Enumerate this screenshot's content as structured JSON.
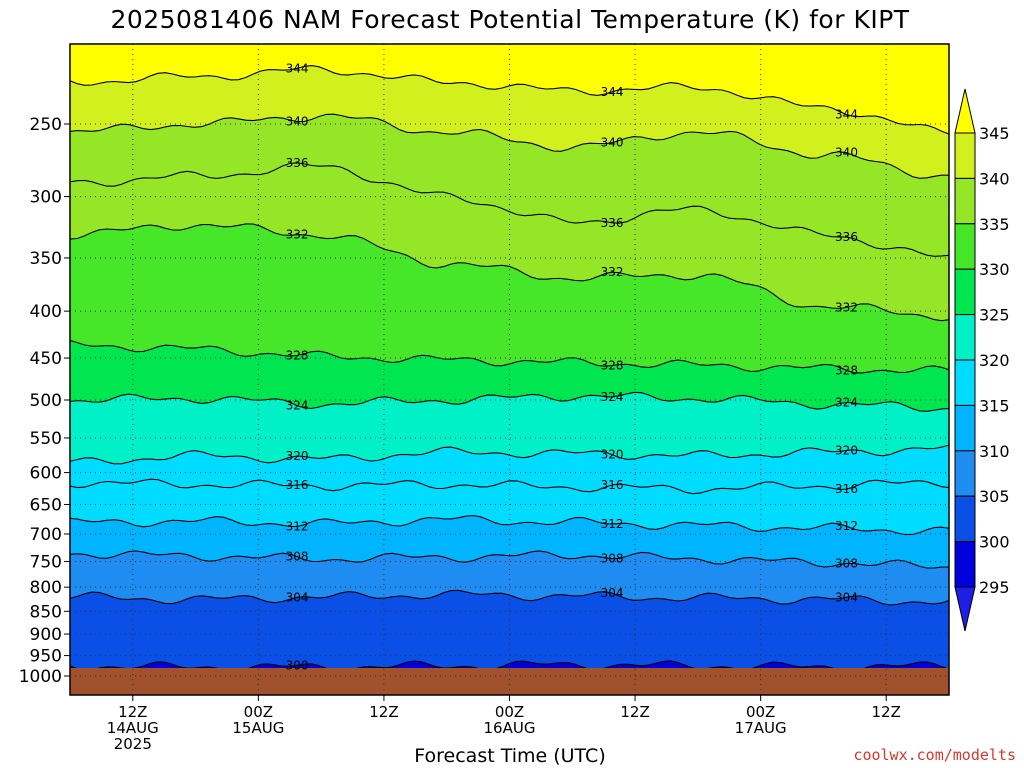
{
  "chart_data": {
    "type": "heatmap",
    "title": "2025081406 NAM Forecast Potential Temperature (K) for KIPT",
    "xlabel": "Forecast Time (UTC)",
    "ylabel": "",
    "credit": "coolwx.com/modelts",
    "y_axis": {
      "scale": "log-pressure",
      "inverted": true,
      "units": "hPa",
      "ticks": [
        250,
        300,
        350,
        400,
        450,
        500,
        550,
        600,
        650,
        700,
        750,
        800,
        850,
        900,
        950,
        1000
      ],
      "range": [
        1000,
        200
      ]
    },
    "x_axis": {
      "range_hours": [
        0,
        84
      ],
      "ticks": [
        {
          "hour": 6,
          "lines": [
            "12Z",
            "14AUG",
            "2025"
          ]
        },
        {
          "hour": 18,
          "lines": [
            "00Z",
            "15AUG"
          ]
        },
        {
          "hour": 30,
          "lines": [
            "12Z"
          ]
        },
        {
          "hour": 42,
          "lines": [
            "00Z",
            "16AUG"
          ]
        },
        {
          "hour": 54,
          "lines": [
            "12Z"
          ]
        },
        {
          "hour": 66,
          "lines": [
            "00Z",
            "17AUG"
          ]
        },
        {
          "hour": 78,
          "lines": [
            "12Z"
          ]
        }
      ]
    },
    "colorbar": {
      "levels": [
        295,
        300,
        305,
        310,
        315,
        320,
        325,
        330,
        335,
        340,
        345
      ],
      "colors": [
        "#1e1ee6",
        "#0000dc",
        "#0a50e6",
        "#1e8cf0",
        "#00b4ff",
        "#00dcff",
        "#00f0c8",
        "#00e650",
        "#46e628",
        "#96e628",
        "#d2f01e",
        "#ffff00"
      ],
      "labels": [
        "295",
        "300",
        "305",
        "310",
        "315",
        "320",
        "325",
        "330",
        "335",
        "340",
        "345"
      ]
    },
    "ground_color": "#a0522d",
    "contour_interval_K": 4,
    "contours": [
      {
        "level": 300,
        "label": "300",
        "pressure_profile": [
          975,
          978,
          978,
          975,
          972,
          975,
          978,
          975
        ]
      },
      {
        "level": 304,
        "label": "304",
        "pressure_profile": [
          820,
          825,
          820,
          815,
          818,
          822,
          825,
          830
        ]
      },
      {
        "level": 308,
        "label": "308",
        "pressure_profile": [
          735,
          740,
          745,
          742,
          738,
          745,
          752,
          760
        ]
      },
      {
        "level": 312,
        "label": "312",
        "pressure_profile": [
          680,
          678,
          682,
          675,
          680,
          685,
          690,
          695
        ]
      },
      {
        "level": 316,
        "label": "316",
        "pressure_profile": [
          615,
          618,
          620,
          618,
          622,
          625,
          620,
          615
        ]
      },
      {
        "level": 320,
        "label": "320",
        "pressure_profile": [
          585,
          575,
          580,
          570,
          572,
          575,
          570,
          565
        ]
      },
      {
        "level": 324,
        "label": "324",
        "pressure_profile": [
          500,
          498,
          505,
          500,
          495,
          498,
          505,
          510
        ]
      },
      {
        "level": 328,
        "label": "328",
        "pressure_profile": [
          435,
          440,
          448,
          452,
          455,
          458,
          462,
          465
        ]
      },
      {
        "level": 332,
        "label": "332",
        "pressure_profile": [
          330,
          322,
          330,
          355,
          368,
          365,
          395,
          405
        ]
      },
      {
        "level": 336,
        "label": "336",
        "pressure_profile": [
          290,
          285,
          278,
          300,
          320,
          310,
          330,
          350
        ]
      },
      {
        "level": 340,
        "label": "340",
        "pressure_profile": [
          255,
          250,
          245,
          255,
          265,
          255,
          270,
          285
        ]
      },
      {
        "level": 344,
        "label": "344",
        "pressure_profile": [
          225,
          222,
          218,
          225,
          230,
          228,
          240,
          255
        ]
      }
    ]
  }
}
